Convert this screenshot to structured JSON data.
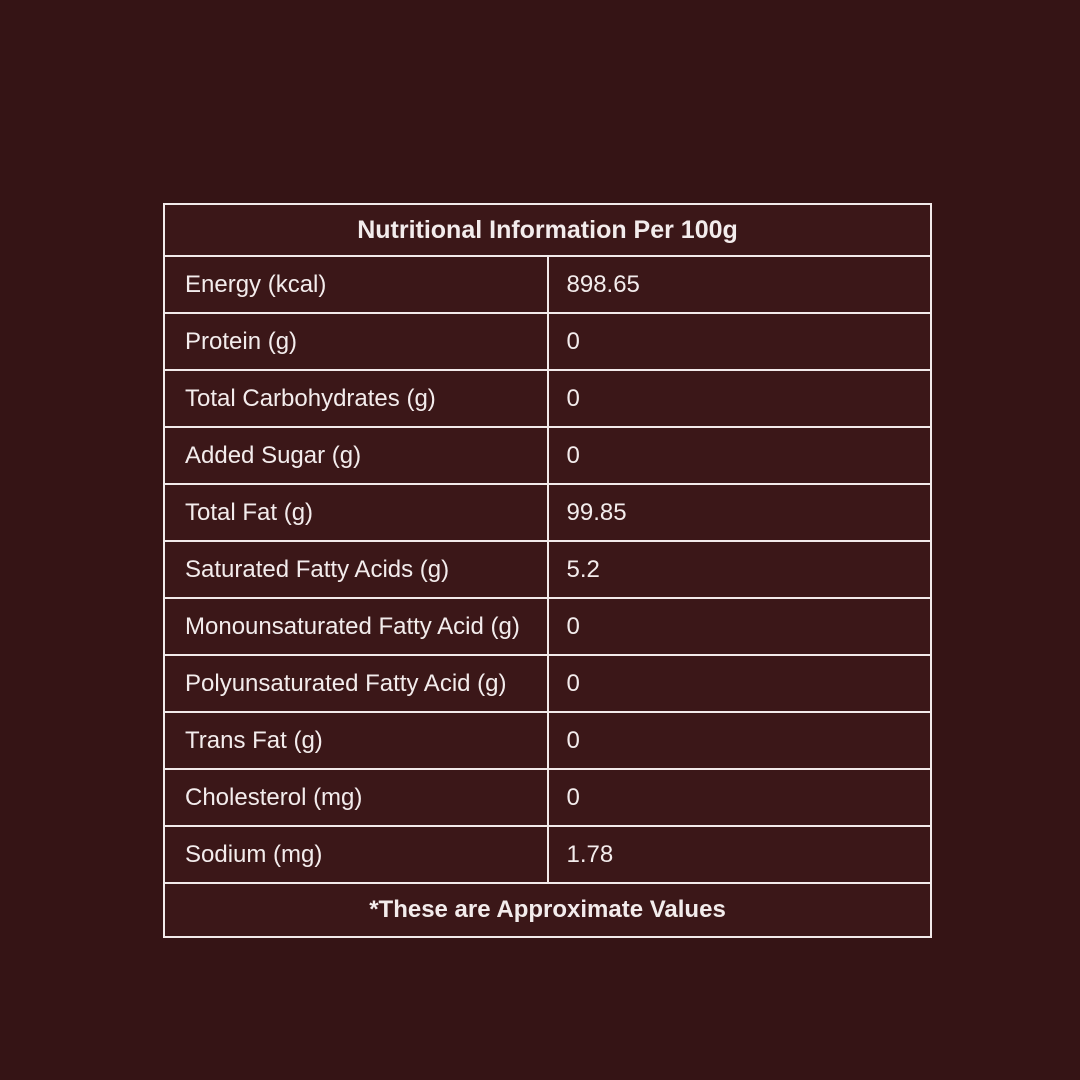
{
  "page": {
    "colors": {
      "background": "#351415",
      "cell_background": "#3b1718",
      "border": "#f2eaea",
      "text": "#f3ecec"
    }
  },
  "table": {
    "title": "Nutritional Information Per 100g",
    "rows": [
      {
        "label": "Energy (kcal)",
        "value": "898.65"
      },
      {
        "label": "Protein (g)",
        "value": "0"
      },
      {
        "label": "Total Carbohydrates (g)",
        "value": "0"
      },
      {
        "label": "Added Sugar (g)",
        "value": "0"
      },
      {
        "label": "Total Fat (g)",
        "value": "99.85"
      },
      {
        "label": "Saturated Fatty Acids (g)",
        "value": "5.2"
      },
      {
        "label": "Monounsaturated Fatty Acid (g)",
        "value": "0"
      },
      {
        "label": "Polyunsaturated Fatty Acid (g)",
        "value": "0"
      },
      {
        "label": "Trans Fat (g)",
        "value": "0"
      },
      {
        "label": "Cholesterol (mg)",
        "value": "0"
      },
      {
        "label": "Sodium (mg)",
        "value": "1.78"
      }
    ],
    "footnote": "*These are Approximate Values"
  }
}
